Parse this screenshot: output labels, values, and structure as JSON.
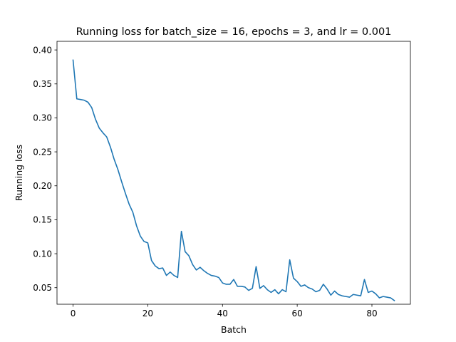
{
  "chart_data": {
    "type": "line",
    "title": "Running loss for batch_size = 16, epochs = 3, and lr = 0.001",
    "xlabel": "Batch",
    "ylabel": "Running loss",
    "xlim": [
      -4.3,
      90.3
    ],
    "ylim": [
      0.0256,
      0.4127
    ],
    "xticks": [
      0,
      20,
      40,
      60,
      80
    ],
    "xtick_labels": [
      "0",
      "20",
      "40",
      "60",
      "80"
    ],
    "yticks": [
      0.05,
      0.1,
      0.15,
      0.2,
      0.25,
      0.3,
      0.35,
      0.4
    ],
    "ytick_labels": [
      "0.05",
      "0.10",
      "0.15",
      "0.20",
      "0.25",
      "0.30",
      "0.35",
      "0.40"
    ],
    "grid": false,
    "legend": "none",
    "series": [
      {
        "color": "#1f77b4",
        "x": [
          0,
          1,
          2,
          3,
          4,
          5,
          6,
          7,
          8,
          9,
          10,
          11,
          12,
          13,
          14,
          15,
          16,
          17,
          18,
          19,
          20,
          21,
          22,
          23,
          24,
          25,
          26,
          27,
          28,
          29,
          30,
          31,
          32,
          33,
          34,
          35,
          36,
          37,
          38,
          39,
          40,
          41,
          42,
          43,
          44,
          45,
          46,
          47,
          48,
          49,
          50,
          51,
          52,
          53,
          54,
          55,
          56,
          57,
          58,
          59,
          60,
          61,
          62,
          63,
          64,
          65,
          66,
          67,
          68,
          69,
          70,
          71,
          72,
          73,
          74,
          75,
          76,
          77,
          78,
          79,
          80,
          81,
          82,
          83,
          84,
          85,
          86
        ],
        "values": [
          0.385,
          0.328,
          0.327,
          0.326,
          0.323,
          0.315,
          0.298,
          0.285,
          0.278,
          0.272,
          0.257,
          0.239,
          0.224,
          0.206,
          0.189,
          0.173,
          0.161,
          0.141,
          0.126,
          0.118,
          0.116,
          0.09,
          0.082,
          0.078,
          0.079,
          0.068,
          0.073,
          0.068,
          0.065,
          0.133,
          0.103,
          0.097,
          0.084,
          0.076,
          0.08,
          0.075,
          0.071,
          0.068,
          0.067,
          0.065,
          0.057,
          0.055,
          0.055,
          0.062,
          0.052,
          0.052,
          0.051,
          0.046,
          0.049,
          0.081,
          0.049,
          0.053,
          0.047,
          0.043,
          0.047,
          0.041,
          0.047,
          0.044,
          0.091,
          0.064,
          0.059,
          0.052,
          0.054,
          0.05,
          0.048,
          0.044,
          0.046,
          0.055,
          0.048,
          0.039,
          0.045,
          0.04,
          0.038,
          0.037,
          0.036,
          0.04,
          0.039,
          0.038,
          0.062,
          0.043,
          0.045,
          0.041,
          0.035,
          0.037,
          0.036,
          0.035,
          0.031
        ]
      }
    ]
  }
}
